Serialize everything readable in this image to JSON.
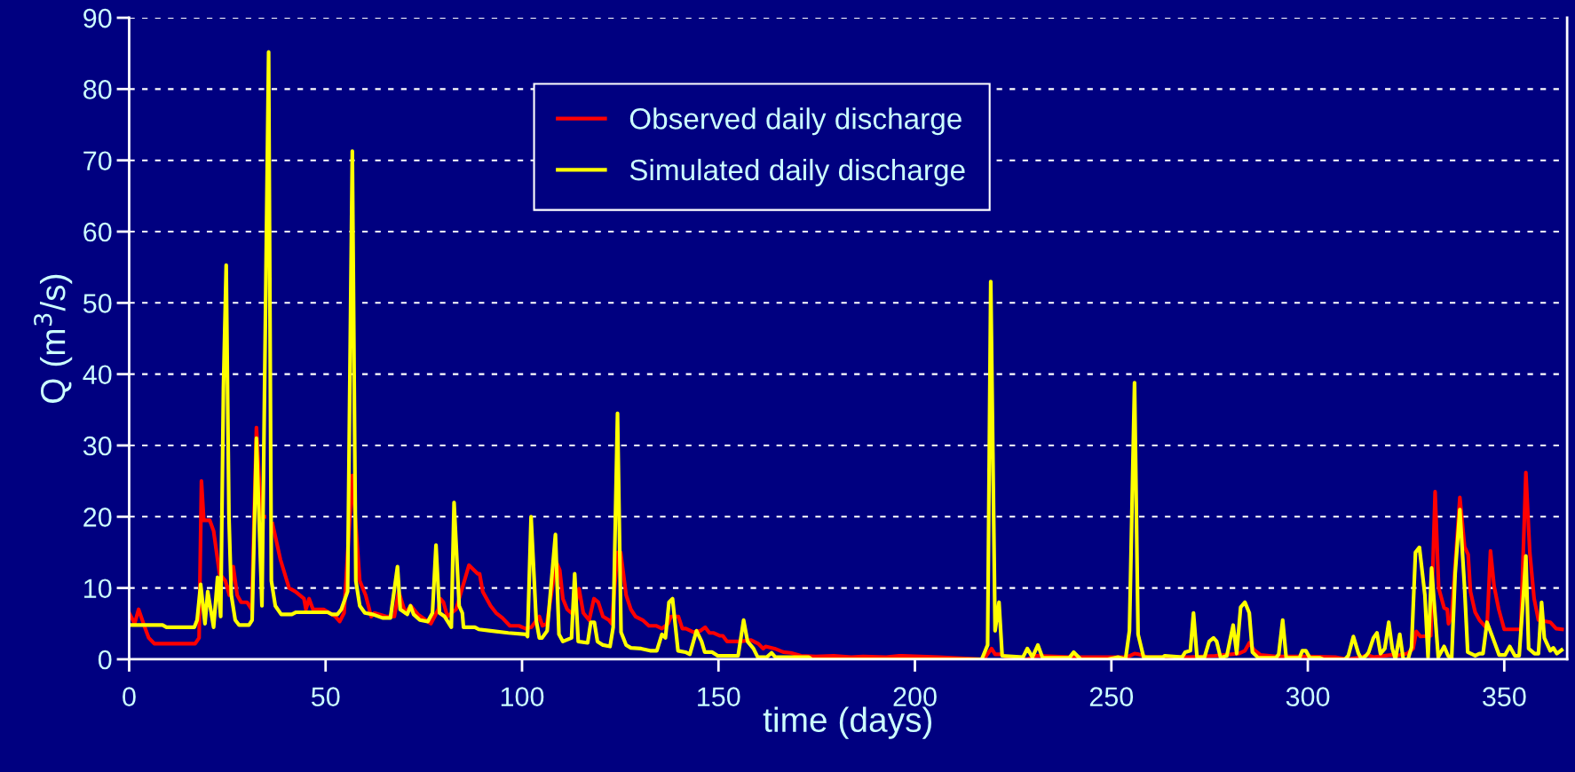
{
  "chart_data": {
    "type": "line",
    "xlabel": "time (days)",
    "ylabel": "Q (m$^{3}$/s)",
    "xlim": [
      0,
      366
    ],
    "xticks": [
      0,
      50,
      100,
      150,
      200,
      250,
      300,
      350
    ],
    "ylim": [
      0,
      90
    ],
    "yticks": [
      0,
      10,
      20,
      30,
      40,
      50,
      60,
      70,
      80,
      90
    ],
    "grid": "y",
    "legend": "top",
    "marker": "none",
    "line_style": "solid",
    "series": [
      {
        "name": "Observed daily discharge",
        "color": "#ff0000",
        "x": [
          0,
          1.4,
          2.4,
          4.3,
          5,
          6.4,
          16.8,
          17.8,
          18.4,
          19,
          20.5,
          21.5,
          23,
          24.5,
          25.5,
          26.5,
          27.5,
          28.5,
          30,
          31.2,
          32.4,
          33.6,
          34.4,
          35.5,
          36.5,
          38.5,
          40.7,
          42.3,
          44.5,
          45,
          45.8,
          46.8,
          49.5,
          52.5,
          53.6,
          54.7,
          56.8,
          58.7,
          60.2,
          61.6,
          62.4,
          65.4,
          67.5,
          68.6,
          70.3,
          71.7,
          73.5,
          75.5,
          76.8,
          78.7,
          79.2,
          80,
          81,
          83.2,
          86.5,
          88.7,
          89.2,
          90,
          92,
          93.4,
          95,
          96.9,
          99.2,
          100.9,
          102.4,
          104.4,
          105.2,
          106.3,
          108.7,
          109.6,
          110.4,
          111.5,
          113,
          114.5,
          115.6,
          117.1,
          118.3,
          119.4,
          120.6,
          122.1,
          122.8,
          124.3,
          125.1,
          126.5,
          127.7,
          128.9,
          130.7,
          132.3,
          134.1,
          135.6,
          137.2,
          137.9,
          139.8,
          140.8,
          141.7,
          143.6,
          145.4,
          146.6,
          147.7,
          148.8,
          150.3,
          151.1,
          152.2,
          155.6,
          158.3,
          160.1,
          161.4,
          162,
          164.3,
          166.5,
          168.4,
          171,
          174.8,
          179.3,
          183.8,
          186.8,
          192.7,
          196,
          206,
          217.5,
          219.5,
          220.4,
          221.9,
          223.3,
          228.6,
          231,
          240,
          250,
          254,
          255.9,
          257,
          259,
          270,
          276.4,
          282.4,
          284,
          285.1,
          286.3,
          288,
          291.9,
          299.5,
          307,
          310,
          313.7,
          315.2,
          316.7,
          321.2,
          322.6,
          325.3,
          326.8,
          327.6,
          328.7,
          331.3,
          332.4,
          333.3,
          334.7,
          335.5,
          335.8,
          336.6,
          338.7,
          339.9,
          340.8,
          341.4,
          342.6,
          343.7,
          345.6,
          346.5,
          347.4,
          348.6,
          350,
          354.2,
          355.5,
          356.5,
          357.6,
          358.7,
          361.7,
          363.2,
          364.7
        ],
        "values": [
          6.5,
          5,
          7,
          4,
          3,
          2.2,
          2.2,
          3,
          25,
          19.5,
          19.5,
          18,
          12,
          11,
          9,
          13,
          9,
          8,
          8,
          7,
          32.5,
          20,
          20,
          null,
          19,
          14,
          10,
          9.5,
          8.5,
          7,
          8.5,
          7,
          7,
          6,
          5.3,
          6.5,
          25.8,
          11,
          9,
          6,
          6.5,
          6,
          6,
          9.5,
          6.5,
          7.5,
          6.3,
          5.5,
          5,
          7,
          8.5,
          8,
          6,
          7,
          13.2,
          12,
          12,
          9.5,
          7.5,
          6.5,
          5.8,
          4.7,
          4.7,
          4.3,
          4.5,
          6,
          4.7,
          5,
          13.7,
          12.5,
          8.5,
          7,
          6.3,
          9.9,
          6.5,
          5.5,
          8.5,
          8,
          6,
          5.5,
          5,
          15,
          15,
          9,
          7,
          6,
          5.5,
          4.7,
          4.7,
          4.3,
          5,
          6,
          6,
          4.3,
          4.3,
          3.8,
          4,
          4.5,
          3.7,
          3.7,
          3.3,
          3.3,
          2.5,
          2.5,
          2.7,
          2.2,
          1.5,
          1.8,
          1.5,
          1,
          0.9,
          0.5,
          0.4,
          0.5,
          0.3,
          0.4,
          0.3,
          0.5,
          0.3,
          0,
          1.5,
          0.7,
          0.7,
          0.3,
          0,
          0.5,
          0.3,
          0.3,
          0.3,
          0.8,
          0.7,
          0.3,
          0.3,
          0.5,
          0.8,
          1.2,
          2.3,
          1.3,
          0.6,
          0.4,
          0.4,
          0.3,
          0,
          0.3,
          0.6,
          0.3,
          0.6,
          0.5,
          0.8,
          1.5,
          3.9,
          3.2,
          3.3,
          23.5,
          10,
          7.2,
          7,
          5,
          6,
          22.7,
          15.8,
          14.7,
          9.5,
          6.6,
          5.5,
          4.3,
          15.2,
          10.3,
          7,
          4.2,
          4.2,
          26.2,
          15,
          8.5,
          5.5,
          5.2,
          4.3,
          4.2
        ]
      },
      {
        "name": "Simulated daily discharge",
        "color": "#ffff00",
        "x": [
          0,
          8.5,
          9.5,
          16.6,
          17.3,
          18.2,
          19.3,
          20,
          21.5,
          22.5,
          23.3,
          24,
          24.7,
          25.4,
          26,
          27,
          28,
          30.5,
          31.3,
          32.4,
          33.8,
          35.5,
          36.2,
          37.2,
          38.7,
          41.4,
          42.5,
          50.5,
          51.6,
          53,
          54,
          55.6,
          56.8,
          57.7,
          58.7,
          60,
          62,
          64.5,
          66.5,
          68.3,
          69,
          70.8,
          71.6,
          72.4,
          74,
          76,
          77.2,
          78.1,
          79,
          80.3,
          82,
          82.7,
          84,
          84.8,
          85.1,
          88,
          89,
          92,
          96.5,
          101,
          101.4,
          102.3,
          103.6,
          104.4,
          105.1,
          106.4,
          108.5,
          109.4,
          110.4,
          112.6,
          113.4,
          114.3,
          116.7,
          117.5,
          118.4,
          119.2,
          120.6,
          122.4,
          123.2,
          124.3,
          125.2,
          126.5,
          127.7,
          130.3,
          132.6,
          134.3,
          135.6,
          136.5,
          137.4,
          138.3,
          139.7,
          141.6,
          142.7,
          144.4,
          145.7,
          146.5,
          148.4,
          149.8,
          155,
          156.4,
          157.4,
          158.9,
          160,
          162.3,
          163.5,
          164.5,
          173,
          173.7,
          192.7,
          217,
          218.5,
          219.3,
          220.4,
          221.4,
          222.2,
          227.5,
          228.6,
          229.9,
          231.3,
          232.5,
          239.3,
          240.4,
          242.2,
          249.1,
          251.7,
          253.6,
          254.6,
          255.9,
          256.8,
          258.2,
          263.1,
          263.6,
          268,
          268.8,
          270.1,
          270.9,
          271.8,
          273.7,
          274.9,
          276,
          276.8,
          277.8,
          279.4,
          281,
          281.9,
          282.9,
          284,
          285.1,
          285.9,
          287.4,
          291.9,
          292.6,
          293.6,
          294.5,
          297.9,
          298.6,
          299.5,
          300.5,
          303.1,
          303.9,
          309.5,
          310.3,
          311.6,
          312.9,
          313.7,
          314.8,
          315.5,
          316.7,
          317.6,
          318.5,
          319.6,
          320.6,
          321.5,
          322.3,
          323.4,
          324.3,
          325.5,
          326.4,
          327.4,
          328.4,
          329.8,
          330.6,
          331.5,
          333.2,
          334.7,
          335.7,
          336.6,
          337.5,
          338.7,
          339.9,
          340.7,
          342.6,
          343.7,
          344.6,
          345.6,
          347.1,
          348.7,
          350.2,
          351.4,
          352.7,
          353.8,
          355,
          355.5,
          356.2,
          357.7,
          358.7,
          359.5,
          360.2,
          361.7,
          362.5,
          363.4,
          364.6
        ],
        "values": [
          4.8,
          4.8,
          4.5,
          4.5,
          5.5,
          10.5,
          5,
          9.5,
          4.5,
          11.5,
          6,
          38,
          55.3,
          20,
          9,
          5.5,
          4.8,
          4.8,
          5.5,
          31,
          7.5,
          85.2,
          11,
          7.5,
          6.3,
          6.3,
          6.6,
          6.6,
          6.3,
          6.3,
          7,
          9.5,
          71.3,
          11,
          7.5,
          6.5,
          6.3,
          5.8,
          5.8,
          13,
          7,
          6.3,
          7.5,
          6.3,
          5.5,
          5.3,
          6.5,
          16,
          6.5,
          6,
          4.5,
          22,
          7.5,
          6.5,
          4.5,
          4.5,
          4.2,
          4,
          3.7,
          3.5,
          3.2,
          20,
          5.5,
          3,
          3,
          4,
          17.5,
          3.5,
          2.5,
          3,
          12,
          2.5,
          2.3,
          5.2,
          5.2,
          2.5,
          2,
          1.8,
          4.5,
          34.5,
          3.8,
          2,
          1.6,
          1.5,
          1.2,
          1.2,
          3.5,
          3,
          8,
          8.5,
          1.2,
          1,
          0.7,
          4,
          2.5,
          1,
          1,
          0.5,
          0.5,
          5.5,
          2.5,
          1.5,
          0.3,
          0.3,
          0.9,
          0.3,
          0.3,
          0,
          0,
          0,
          2,
          53,
          4,
          8,
          0.5,
          0.3,
          1.5,
          0.3,
          2,
          0.2,
          0.2,
          1,
          0,
          0,
          0.3,
          0,
          4,
          38.8,
          3.5,
          0.3,
          0.3,
          0.5,
          0.3,
          1,
          1.2,
          6.5,
          0.3,
          0.3,
          2.5,
          3,
          2.5,
          0.2,
          0.5,
          4.8,
          0.8,
          7.3,
          8,
          6.5,
          1,
          0.2,
          0.2,
          0.7,
          5.5,
          0.2,
          0.2,
          1.2,
          1.2,
          0.2,
          0.2,
          0,
          0,
          0.5,
          3.2,
          0.8,
          0,
          0.5,
          1,
          3,
          3.7,
          0.8,
          1.5,
          5.2,
          1.5,
          0,
          3.5,
          0,
          0,
          1.7,
          15,
          15.7,
          9,
          0.3,
          12.8,
          0.3,
          1.8,
          0.5,
          0,
          12,
          21,
          10,
          1,
          0.5,
          0.8,
          0.8,
          5.2,
          3,
          0.6,
          0.6,
          1.8,
          0.5,
          0.5,
          10,
          14.5,
          1.5,
          0.8,
          0.8,
          8,
          3,
          1.2,
          1.6,
          0.8,
          1.3
        ]
      }
    ]
  }
}
